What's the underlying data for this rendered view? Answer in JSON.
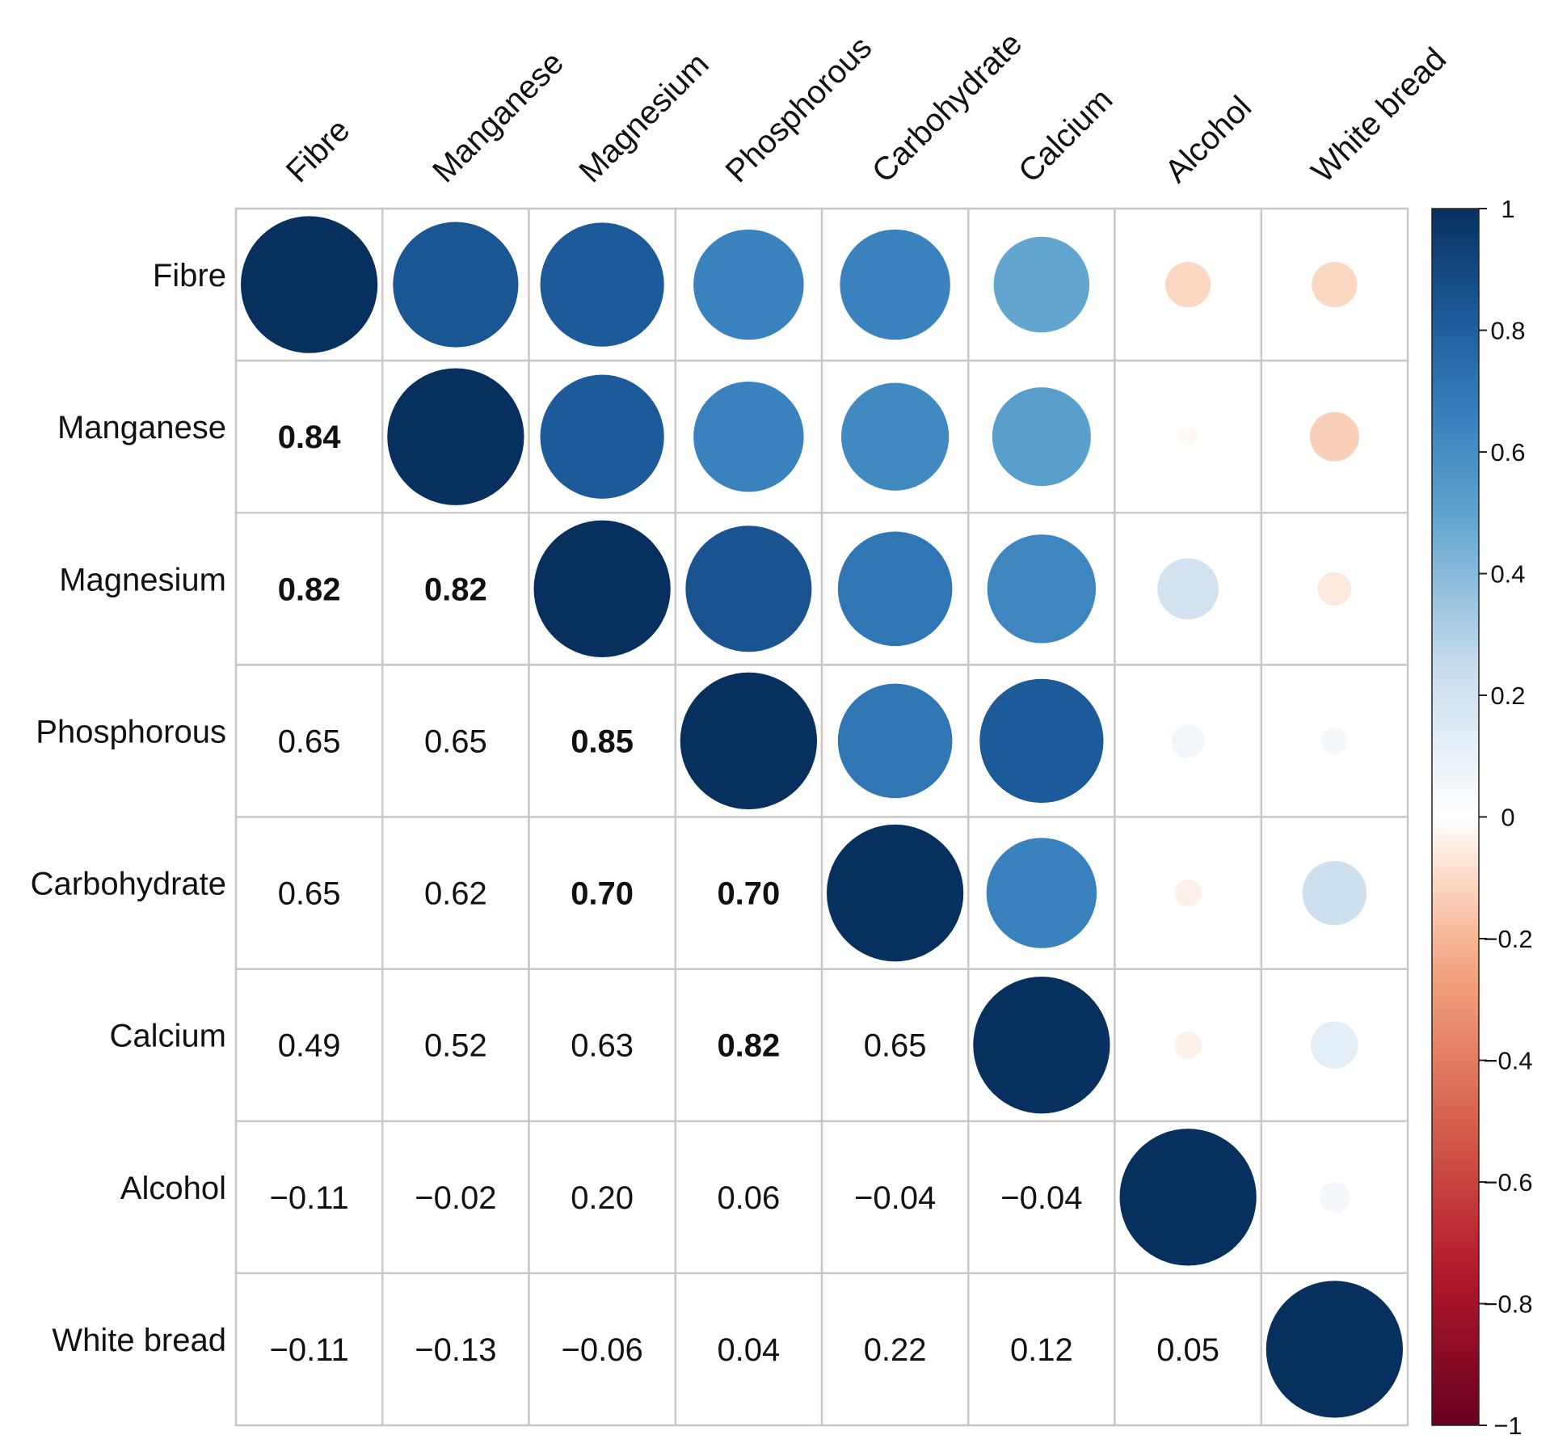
{
  "chart_data": {
    "type": "heatmap",
    "title": "",
    "variables": [
      "Fibre",
      "Manganese",
      "Magnesium",
      "Phosphorous",
      "Carbohydrate",
      "Calcium",
      "Alcohol",
      "White bread"
    ],
    "matrix": [
      [
        1.0,
        0.84,
        0.82,
        0.65,
        0.65,
        0.49,
        -0.11,
        -0.11
      ],
      [
        0.84,
        1.0,
        0.82,
        0.65,
        0.62,
        0.52,
        -0.02,
        -0.13
      ],
      [
        0.82,
        0.82,
        1.0,
        0.85,
        0.7,
        0.63,
        0.2,
        -0.06
      ],
      [
        0.65,
        0.65,
        0.85,
        1.0,
        0.7,
        0.82,
        0.06,
        0.04
      ],
      [
        0.65,
        0.62,
        0.7,
        0.7,
        1.0,
        0.65,
        -0.04,
        0.22
      ],
      [
        0.49,
        0.52,
        0.63,
        0.82,
        0.65,
        1.0,
        -0.04,
        0.12
      ],
      [
        -0.11,
        -0.02,
        0.2,
        0.06,
        -0.04,
        -0.04,
        1.0,
        0.05
      ],
      [
        -0.11,
        -0.13,
        -0.06,
        0.04,
        0.22,
        0.12,
        0.05,
        1.0
      ]
    ],
    "lower_labels": [
      [
        null,
        null,
        null,
        null,
        null,
        null,
        null,
        null
      ],
      [
        "0.84",
        null,
        null,
        null,
        null,
        null,
        null,
        null
      ],
      [
        "0.82",
        "0.82",
        null,
        null,
        null,
        null,
        null,
        null
      ],
      [
        "0.65",
        "0.65",
        "0.85",
        null,
        null,
        null,
        null,
        null
      ],
      [
        "0.65",
        "0.62",
        "0.70",
        "0.70",
        null,
        null,
        null,
        null
      ],
      [
        "0.49",
        "0.52",
        "0.63",
        "0.82",
        "0.65",
        null,
        null,
        null
      ],
      [
        "−0.11",
        "−0.02",
        "0.20",
        "0.06",
        "−0.04",
        "−0.04",
        null,
        null
      ],
      [
        "−0.11",
        "−0.13",
        "−0.06",
        "0.04",
        "0.22",
        "0.12",
        "0.05",
        null
      ]
    ],
    "bold_threshold": 0.7,
    "upper_style": "circle",
    "lower_style": "number",
    "colorbar": {
      "range": [
        -1,
        1
      ],
      "ticks": [
        "1",
        "0.8",
        "0.6",
        "0.4",
        "0.2",
        "0",
        "−0.2",
        "−0.4",
        "−0.6",
        "−0.8",
        "−1"
      ],
      "tick_values": [
        1,
        0.8,
        0.6,
        0.4,
        0.2,
        0,
        -0.2,
        -0.4,
        -0.6,
        -0.8,
        -1
      ],
      "placement": "right"
    },
    "colors": {
      "stops": [
        {
          "v": -1.0,
          "c": "#67001f"
        },
        {
          "v": -0.75,
          "c": "#b2182b"
        },
        {
          "v": -0.5,
          "c": "#d6604d"
        },
        {
          "v": -0.25,
          "c": "#f4a582"
        },
        {
          "v": -0.1,
          "c": "#fddbc7"
        },
        {
          "v": 0.0,
          "c": "#ffffff"
        },
        {
          "v": 0.1,
          "c": "#e8f1f8"
        },
        {
          "v": 0.25,
          "c": "#c6dced"
        },
        {
          "v": 0.5,
          "c": "#5ea3cd"
        },
        {
          "v": 0.65,
          "c": "#3a82be"
        },
        {
          "v": 0.8,
          "c": "#1f5fa0"
        },
        {
          "v": 1.0,
          "c": "#08305f"
        }
      ],
      "grid_line": "#c8c8c8"
    }
  }
}
